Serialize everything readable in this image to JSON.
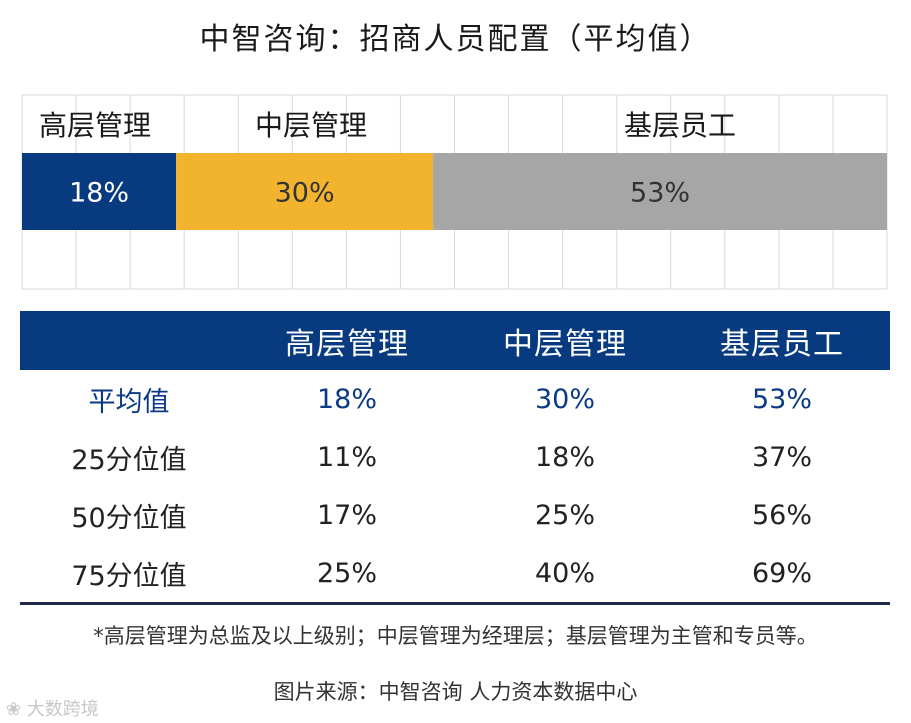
{
  "title": "中智咨询：招商人员配置（平均值）",
  "colors": {
    "senior": "#083a80",
    "middle": "#f2b42f",
    "base": "#a6a6a6",
    "header_bg": "#083a80"
  },
  "chart_data": {
    "type": "bar",
    "orientation": "horizontal-stacked",
    "categories": [
      "高层管理",
      "中层管理",
      "基层员工"
    ],
    "values": [
      18,
      30,
      53
    ],
    "labels": [
      "18%",
      "30%",
      "53%"
    ],
    "xlim": [
      0,
      101
    ],
    "grid": true
  },
  "table": {
    "headers": [
      "",
      "高层管理",
      "中层管理",
      "基层员工"
    ],
    "rows": [
      [
        "平均值",
        "18%",
        "30%",
        "53%"
      ],
      [
        "25分位值",
        "11%",
        "18%",
        "37%"
      ],
      [
        "50分位值",
        "17%",
        "25%",
        "56%"
      ],
      [
        "75分位值",
        "25%",
        "40%",
        "69%"
      ]
    ]
  },
  "footnote": "*高层管理为总监及以上级别；中层管理为经理层；基层管理为主管和专员等。",
  "source": "图片来源：中智咨询 人力资本数据中心",
  "watermark": "大数跨境"
}
